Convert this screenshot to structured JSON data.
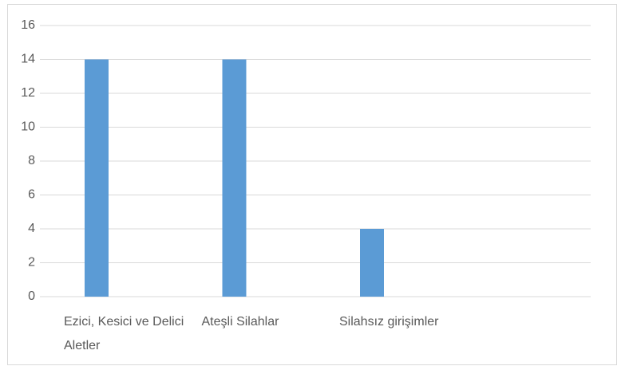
{
  "chart_data": {
    "type": "bar",
    "categories": [
      "Ezici, Kesici ve Delici Aletler",
      "Ateşli Silahlar",
      "Silahsız girişimler",
      null
    ],
    "values": [
      14,
      14,
      4,
      null
    ],
    "color": "#5b9bd5",
    "ylim": [
      0,
      16
    ],
    "yticks": [
      0,
      2,
      4,
      6,
      8,
      10,
      12,
      14,
      16
    ],
    "grid": true
  }
}
